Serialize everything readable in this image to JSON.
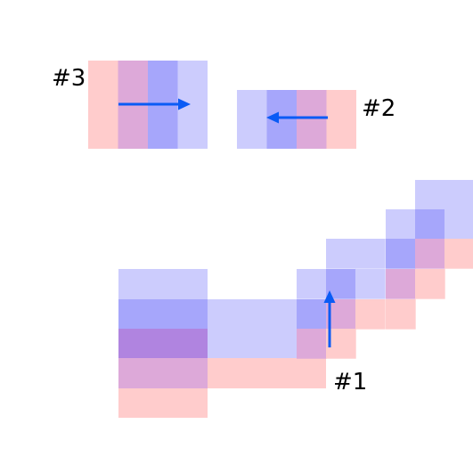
{
  "palette": {
    "pink": "#ffcccc",
    "magenta": "#dda9d9",
    "blue": "#a6a6fb",
    "lavender": "#ccccfd",
    "purple": "#b084e0",
    "arrow": "#0a5bf5"
  },
  "labels": {
    "p1": "#1",
    "p2": "#2",
    "p3": "#3"
  },
  "patterns": [
    {
      "id": "#3",
      "strip_order": [
        "pink",
        "magenta",
        "blue",
        "lavender"
      ],
      "arrow_direction": "right"
    },
    {
      "id": "#2",
      "strip_order": [
        "lavender",
        "blue",
        "magenta",
        "pink"
      ],
      "arrow_direction": "left"
    },
    {
      "id": "#1",
      "arrow_direction": "up"
    }
  ]
}
